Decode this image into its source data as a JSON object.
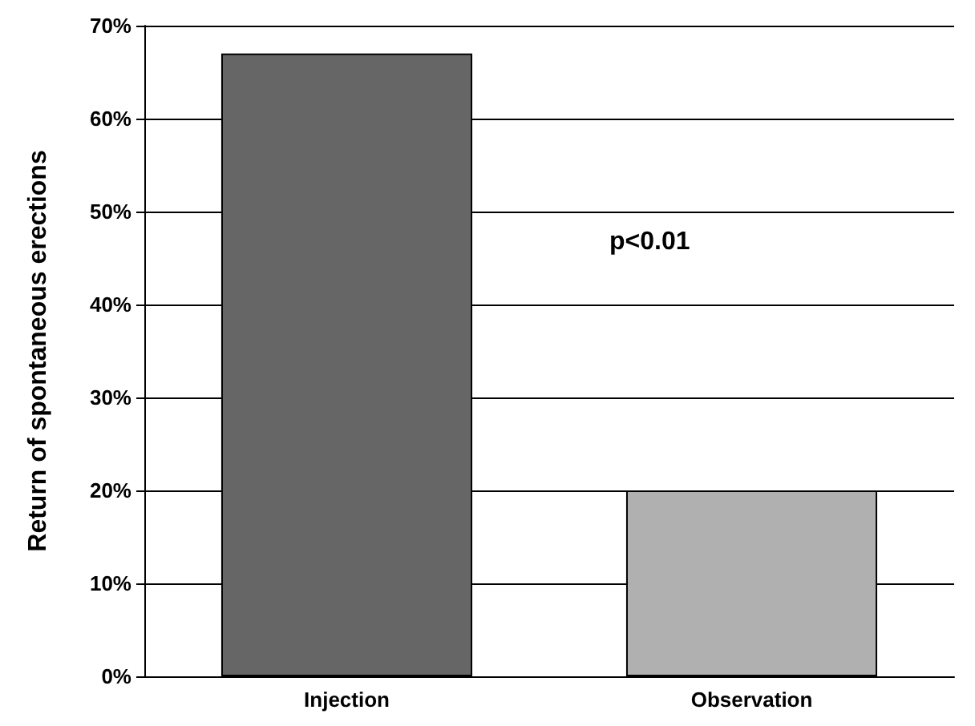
{
  "chart_data": {
    "type": "bar",
    "ylabel": "Return of spontaneous erections",
    "categories": [
      "Injection",
      "Observation"
    ],
    "values": [
      67,
      20
    ],
    "colors": [
      "#666666",
      "#b0b0b0"
    ],
    "ylim": [
      0,
      70
    ],
    "yticks": [
      {
        "value": 0,
        "label": "0%"
      },
      {
        "value": 10,
        "label": "10%"
      },
      {
        "value": 20,
        "label": "20%"
      },
      {
        "value": 30,
        "label": "30%"
      },
      {
        "value": 40,
        "label": "40%"
      },
      {
        "value": 50,
        "label": "50%"
      },
      {
        "value": 60,
        "label": "60%"
      },
      {
        "value": 70,
        "label": "70%"
      }
    ],
    "grid": "y",
    "annotations": [
      "p<0.01"
    ]
  }
}
